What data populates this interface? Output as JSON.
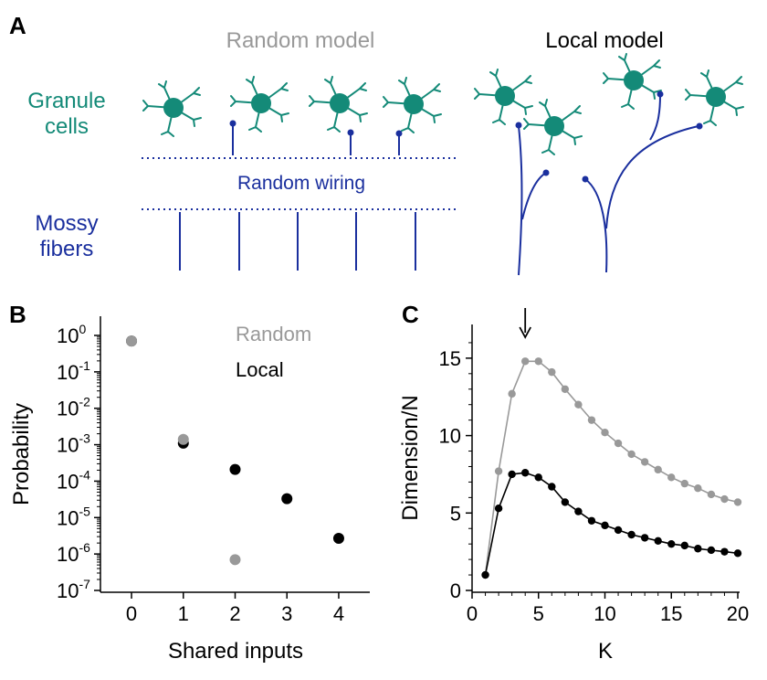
{
  "panel_a": {
    "letter": "A",
    "random_title": "Random model",
    "local_title": "Local model",
    "granule_label_1": "Granule",
    "granule_label_2": "cells",
    "wiring_label": "Random wiring",
    "mossy_label_1": "Mossy",
    "mossy_label_2": "fibers"
  },
  "panel_b": {
    "letter": "B",
    "legend_random": "Random",
    "legend_local": "Local"
  },
  "panel_c": {
    "letter": "C"
  },
  "colors": {
    "granule": "#148a78",
    "fiber": "#1a2f9e",
    "random": "#999999",
    "local": "#000000"
  },
  "chart_data": [
    {
      "type": "scatter",
      "panel": "B",
      "xlabel": "Shared inputs",
      "ylabel": "Probability",
      "log_y": true,
      "xlim": [
        -0.6,
        4.6
      ],
      "ylim_exp": [
        -7,
        0
      ],
      "x_ticks": [
        "0",
        "1",
        "2",
        "3",
        "4"
      ],
      "y_ticks": [
        {
          "exp": 0,
          "label": "0"
        },
        {
          "exp": -1,
          "label": "-1"
        },
        {
          "exp": -2,
          "label": "-2"
        },
        {
          "exp": -3,
          "label": "-3"
        },
        {
          "exp": -4,
          "label": "-4"
        },
        {
          "exp": -5,
          "label": "-5"
        },
        {
          "exp": -6,
          "label": "-6"
        },
        {
          "exp": -7,
          "label": "-7"
        }
      ],
      "series": [
        {
          "name": "Random",
          "color": "#999999",
          "points": [
            [
              0,
              0.7
            ],
            [
              1,
              0.0014
            ],
            [
              2,
              7e-07
            ]
          ]
        },
        {
          "name": "Local",
          "color": "#000000",
          "points": [
            [
              0,
              0.7
            ],
            [
              1,
              0.0011
            ],
            [
              2,
              0.00021
            ],
            [
              3,
              3.3e-05
            ],
            [
              4,
              2.7e-06
            ]
          ]
        }
      ]
    },
    {
      "type": "line",
      "panel": "C",
      "xlabel": "K",
      "ylabel": "Dimension/N",
      "xlim": [
        0,
        20
      ],
      "ylim": [
        0,
        17
      ],
      "x_ticks": [
        "0",
        "5",
        "10",
        "15",
        "20"
      ],
      "y_ticks": [
        "0",
        "5",
        "10",
        "15"
      ],
      "arrow_at_x": 4,
      "series": [
        {
          "name": "Random",
          "color": "#999999",
          "x": [
            1,
            2,
            3,
            4,
            5,
            6,
            7,
            8,
            9,
            10,
            11,
            12,
            13,
            14,
            15,
            16,
            17,
            18,
            19,
            20
          ],
          "y": [
            1.0,
            7.7,
            12.7,
            14.8,
            14.8,
            14.1,
            13.0,
            12.0,
            11.0,
            10.2,
            9.5,
            8.8,
            8.3,
            7.8,
            7.3,
            6.9,
            6.6,
            6.2,
            5.9,
            5.7
          ]
        },
        {
          "name": "Local",
          "color": "#000000",
          "x": [
            1,
            2,
            3,
            4,
            5,
            6,
            7,
            8,
            9,
            10,
            11,
            12,
            13,
            14,
            15,
            16,
            17,
            18,
            19,
            20
          ],
          "y": [
            1.0,
            5.3,
            7.5,
            7.6,
            7.3,
            6.7,
            5.7,
            5.1,
            4.5,
            4.2,
            3.9,
            3.6,
            3.4,
            3.2,
            3.0,
            2.9,
            2.7,
            2.6,
            2.5,
            2.4
          ]
        }
      ]
    }
  ]
}
